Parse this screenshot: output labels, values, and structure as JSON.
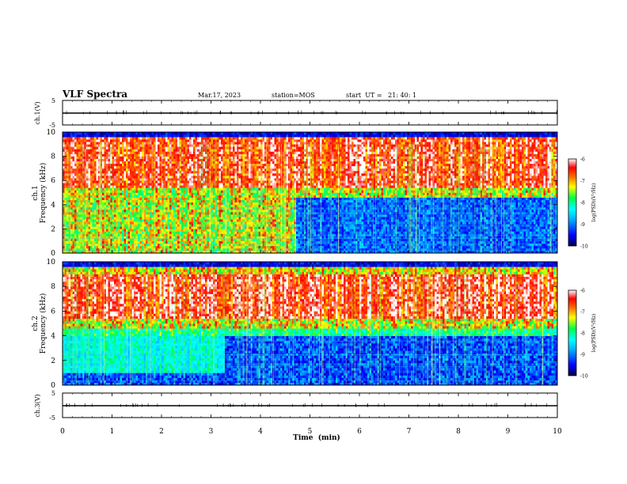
{
  "header": {
    "title": "VLF Spectra",
    "date": "Mar.17, 2023",
    "station": "station=MOS",
    "start_ut": "start  UT =   21: 40: 1"
  },
  "chart_data": {
    "type": "heatmap",
    "xlabel": "Time  (min)",
    "xlim": [
      0,
      10
    ],
    "x_ticks": [
      "0",
      "1",
      "2",
      "3",
      "4",
      "5",
      "6",
      "7",
      "8",
      "9",
      "10"
    ],
    "panels": [
      {
        "name": "ch.1(V)",
        "kind": "waveform",
        "ylabel": "ch.1(V)",
        "ylim": [
          -5,
          5
        ],
        "y_ticks": [
          "5",
          "-5"
        ],
        "level": 0
      },
      {
        "name": "ch.1 spectrogram",
        "kind": "spectrogram",
        "ylabel_line1": "ch.1",
        "ylabel_line2": "Frequency (kHz)",
        "ylim": [
          0,
          10
        ],
        "y_ticks": [
          "0",
          "2",
          "4",
          "6",
          "8",
          "10"
        ],
        "colorbar": {
          "label": "log(PSD)(V²/Hz)",
          "range": [
            -10,
            -6
          ],
          "ticks": [
            "-6",
            "-7",
            "-8",
            "-9",
            "-10"
          ]
        },
        "features": {
          "strong_band_khz": [
            5.5,
            9.5
          ],
          "broadband_noise_until_min": 4.7,
          "broadband_noise_khz": [
            0,
            5
          ],
          "low_band_after_min": [
            0,
            4.5
          ],
          "peak_log_psd": -6
        }
      },
      {
        "name": "ch.2 spectrogram",
        "kind": "spectrogram",
        "ylabel_line1": "ch.2",
        "ylabel_line2": "Frequency (kHz)",
        "ylim": [
          0,
          10
        ],
        "y_ticks": [
          "0",
          "2",
          "4",
          "6",
          "8",
          "10"
        ],
        "colorbar": {
          "label": "log(PSD)(V²/Hz)",
          "range": [
            -10,
            -6
          ],
          "ticks": [
            "-6",
            "-7",
            "-8",
            "-9",
            "-10"
          ]
        },
        "features": {
          "strong_band_khz": [
            5.5,
            9.0
          ],
          "cyan_noise_until_min": 3.3,
          "cyan_noise_khz": [
            1,
            4
          ],
          "peak_log_psd": -6
        }
      },
      {
        "name": "ch.3(V)",
        "kind": "waveform",
        "ylabel": "ch.3(V)",
        "ylim": [
          -5,
          5
        ],
        "y_ticks": [
          "5",
          "-5"
        ],
        "level": 0
      }
    ]
  }
}
